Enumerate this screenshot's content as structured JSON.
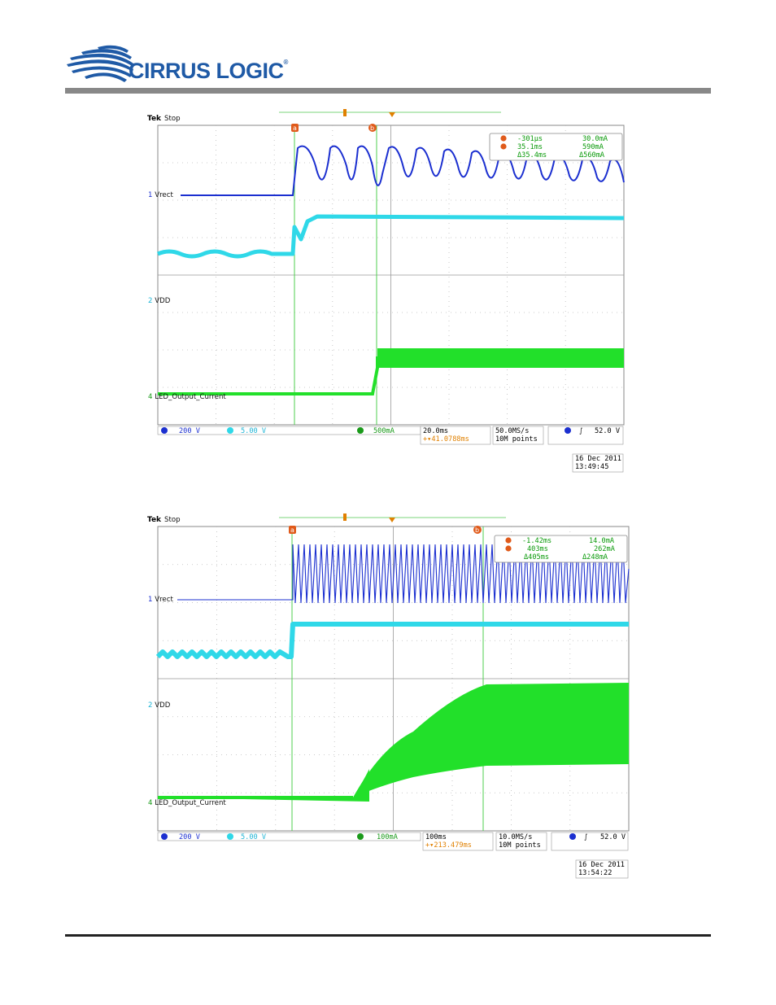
{
  "header": {
    "logo_text": "CIRRUS LOGIC",
    "registered_mark": "®",
    "rule_color": "#888888"
  },
  "scopes": [
    {
      "brand": "Tek",
      "status": "Stop",
      "channels": {
        "ch1": "Vrect",
        "ch2": "VDD",
        "ch4": "LED_Output_Current"
      },
      "cursors": {
        "a": {
          "marker": "a",
          "time": "-301µs",
          "value": "30.0mA"
        },
        "b": {
          "marker": "b",
          "time": "35.1ms",
          "value": "590mA"
        },
        "delta": {
          "time": "Δ35.4ms",
          "value": "Δ560mA"
        }
      },
      "status_bar": {
        "ch1_scale": "200 V",
        "ch2_scale": "5.00 V",
        "ch4_scale": "500mA",
        "timebase": "20.0ms",
        "trigger_pos": "+▾41.0788ms",
        "sample_rate": "50.0MS/s",
        "record_length": "10M points",
        "trigger_level": "52.0 V"
      },
      "date": "16 Dec  2011",
      "time": "13:49:45"
    },
    {
      "brand": "Tek",
      "status": "Stop",
      "channels": {
        "ch1": "Vrect",
        "ch2": "VDD",
        "ch4": "LED_Output_Current"
      },
      "cursors": {
        "a": {
          "marker": "a",
          "time": "-1.42ms",
          "value": "14.0mA"
        },
        "b": {
          "marker": "b",
          "time": "403ms",
          "value": "262mA"
        },
        "delta": {
          "time": "Δ405ms",
          "value": "Δ248mA"
        }
      },
      "status_bar": {
        "ch1_scale": "200 V",
        "ch2_scale": "5.00 V",
        "ch4_scale": "100mA",
        "timebase": "100ms",
        "trigger_pos": "+▾213.479ms",
        "sample_rate": "10.0MS/s",
        "record_length": "10M points",
        "trigger_level": "52.0 V"
      },
      "date": "16 Dec  2011",
      "time": "13:54:22"
    }
  ],
  "colors": {
    "ch1": "#1b2fd0",
    "ch2": "#2fd8e8",
    "ch4": "#22e02a",
    "cursor": "#4fcf4f",
    "trigger": "#e08000",
    "logo": "#1f5aa6"
  }
}
